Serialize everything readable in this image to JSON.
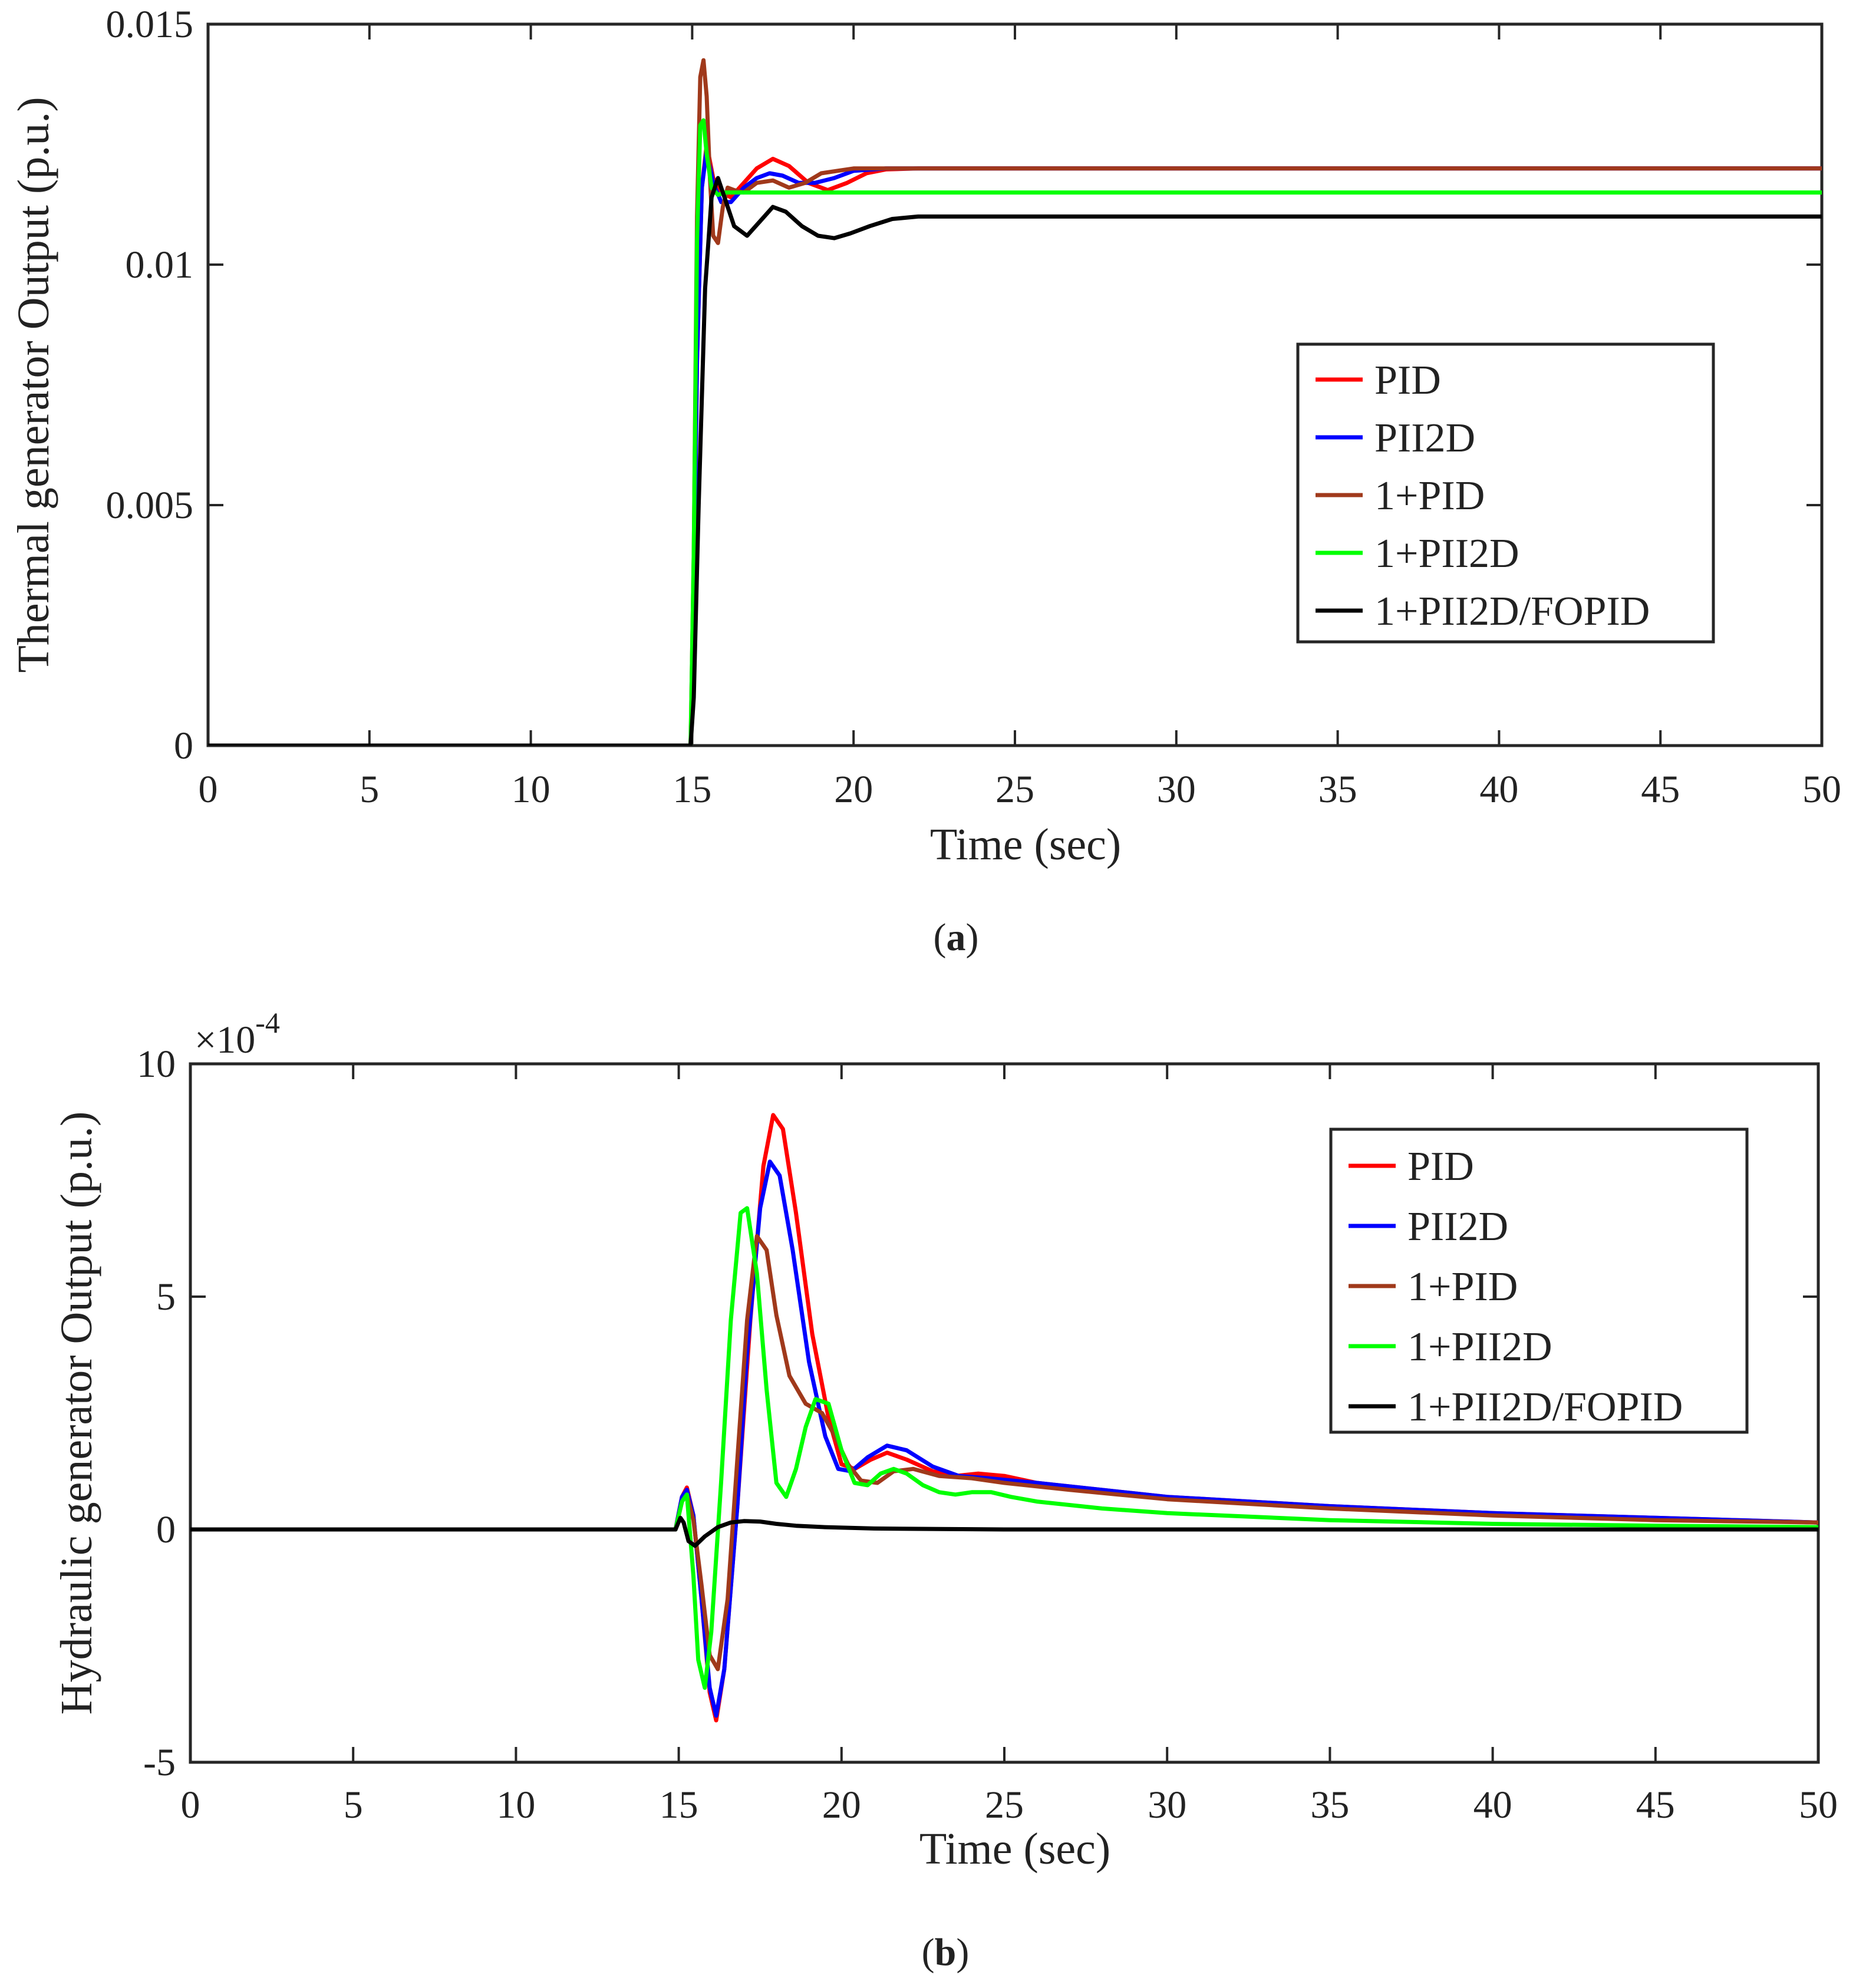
{
  "chart_data": [
    {
      "type": "line",
      "panel": "a",
      "caption": "(a)",
      "caption_letter": "a",
      "xlabel": "Time (sec)",
      "ylabel": "Thermal generator Output (p.u.)",
      "xlim": [
        0,
        50
      ],
      "ylim": [
        0,
        0.015
      ],
      "xticks": [
        0,
        5,
        10,
        15,
        20,
        25,
        30,
        35,
        40,
        45,
        50
      ],
      "xtick_labels": [
        "0",
        "5",
        "10",
        "15",
        "20",
        "25",
        "30",
        "35",
        "40",
        "45",
        "50"
      ],
      "yticks": [
        0,
        0.005,
        0.01,
        0.015
      ],
      "ytick_labels": [
        "0",
        "0.005",
        "0.01",
        "0.015"
      ],
      "exponent_label": "",
      "legend_position": "right",
      "series": [
        {
          "name": "PID",
          "color": "#ff0000",
          "x": [
            0,
            14.95,
            15.05,
            15.15,
            15.3,
            15.45,
            15.65,
            15.9,
            16.2,
            16.6,
            17.0,
            17.5,
            18.0,
            18.6,
            19.2,
            19.8,
            20.4,
            21.0,
            22.0,
            25.0,
            50.0
          ],
          "y": [
            0,
            0,
            0.003,
            0.008,
            0.0116,
            0.0125,
            0.0118,
            0.0115,
            0.0114,
            0.0117,
            0.012,
            0.0122,
            0.01205,
            0.0117,
            0.01155,
            0.0117,
            0.0119,
            0.01198,
            0.012,
            0.012,
            0.012
          ]
        },
        {
          "name": "PII2D",
          "color": "#0000ff",
          "x": [
            0,
            14.95,
            15.05,
            15.15,
            15.3,
            15.45,
            15.65,
            15.9,
            16.2,
            16.6,
            17.0,
            17.4,
            17.8,
            18.3,
            18.8,
            19.4,
            20.0,
            21.0,
            25.0,
            50.0
          ],
          "y": [
            0,
            0,
            0.003,
            0.008,
            0.0116,
            0.0124,
            0.0117,
            0.0113,
            0.0113,
            0.0116,
            0.0118,
            0.0119,
            0.01185,
            0.0117,
            0.0117,
            0.0118,
            0.01195,
            0.012,
            0.012,
            0.012
          ]
        },
        {
          "name": "1+PID",
          "color": "#a0391b",
          "x": [
            0,
            14.95,
            15.05,
            15.15,
            15.25,
            15.35,
            15.45,
            15.55,
            15.65,
            15.8,
            15.95,
            16.1,
            16.3,
            16.6,
            17.0,
            17.5,
            18.0,
            18.5,
            19.0,
            20.0,
            21.0,
            25.0,
            50.0
          ],
          "y": [
            0,
            0,
            0.004,
            0.011,
            0.0139,
            0.01425,
            0.0135,
            0.0118,
            0.0106,
            0.01045,
            0.0112,
            0.0116,
            0.01155,
            0.0115,
            0.0117,
            0.01175,
            0.0116,
            0.0117,
            0.0119,
            0.012,
            0.012,
            0.012,
            0.012
          ]
        },
        {
          "name": "1+PII2D",
          "color": "#00ff00",
          "x": [
            0,
            14.95,
            15.05,
            15.15,
            15.25,
            15.35,
            15.45,
            15.6,
            15.8,
            16.0,
            16.3,
            50.0
          ],
          "y": [
            0,
            0,
            0.004,
            0.0105,
            0.0129,
            0.013,
            0.0123,
            0.0116,
            0.01145,
            0.0115,
            0.0115,
            0.0115
          ]
        },
        {
          "name": "1+PII2D/FOPID",
          "color": "#000000",
          "x": [
            0,
            14.95,
            15.05,
            15.2,
            15.4,
            15.6,
            15.8,
            16.0,
            16.3,
            16.7,
            17.1,
            17.5,
            17.9,
            18.4,
            18.9,
            19.4,
            19.9,
            20.5,
            21.2,
            22.0,
            25.0,
            50.0
          ],
          "y": [
            0,
            0,
            0.001,
            0.005,
            0.0095,
            0.0114,
            0.0118,
            0.0114,
            0.0108,
            0.0106,
            0.0109,
            0.0112,
            0.0111,
            0.0108,
            0.0106,
            0.01055,
            0.01065,
            0.0108,
            0.01095,
            0.011,
            0.011,
            0.011
          ]
        }
      ]
    },
    {
      "type": "line",
      "panel": "b",
      "caption": "(b)",
      "caption_letter": "b",
      "xlabel": "Time (sec)",
      "ylabel": "Hydraulic generator Output (p.u.)",
      "xlim": [
        0,
        50
      ],
      "ylim": [
        -5,
        10
      ],
      "xticks": [
        0,
        5,
        10,
        15,
        20,
        25,
        30,
        35,
        40,
        45,
        50
      ],
      "xtick_labels": [
        "0",
        "5",
        "10",
        "15",
        "20",
        "25",
        "30",
        "35",
        "40",
        "45",
        "50"
      ],
      "yticks": [
        -5,
        0,
        5,
        10
      ],
      "ytick_labels": [
        "-5",
        "0",
        "5",
        "10"
      ],
      "exponent_label": "×10",
      "exponent_power": "-4",
      "legend_position": "right",
      "series": [
        {
          "name": "PID",
          "color": "#ff0000",
          "x": [
            0,
            14.9,
            15.1,
            15.25,
            15.45,
            15.7,
            15.95,
            16.15,
            16.4,
            16.8,
            17.2,
            17.6,
            17.9,
            18.2,
            18.6,
            19.1,
            19.6,
            20.0,
            20.4,
            20.9,
            21.4,
            22.0,
            22.8,
            23.5,
            24.2,
            25.0,
            26.0,
            28.0,
            30.0,
            35.0,
            40.0,
            45.0,
            50.0
          ],
          "y": [
            0,
            0,
            0.7,
            0.9,
            0.3,
            -1.5,
            -3.5,
            -4.1,
            -3.0,
            0.5,
            4.5,
            7.8,
            8.9,
            8.6,
            6.8,
            4.2,
            2.4,
            1.4,
            1.3,
            1.5,
            1.65,
            1.5,
            1.25,
            1.15,
            1.2,
            1.15,
            1.0,
            0.85,
            0.7,
            0.5,
            0.35,
            0.25,
            0.15
          ]
        },
        {
          "name": "PII2D",
          "color": "#0000ff",
          "x": [
            0,
            14.9,
            15.1,
            15.25,
            15.45,
            15.7,
            15.95,
            16.15,
            16.4,
            16.8,
            17.1,
            17.5,
            17.8,
            18.1,
            18.5,
            19.0,
            19.5,
            19.9,
            20.3,
            20.8,
            21.4,
            22.0,
            22.8,
            23.6,
            24.5,
            26.0,
            28.0,
            30.0,
            35.0,
            40.0,
            45.0,
            50.0
          ],
          "y": [
            0,
            0,
            0.7,
            0.85,
            0.3,
            -1.5,
            -3.4,
            -4.0,
            -3.0,
            0.5,
            3.8,
            6.9,
            7.9,
            7.6,
            6.0,
            3.6,
            2.0,
            1.3,
            1.25,
            1.55,
            1.8,
            1.7,
            1.35,
            1.15,
            1.1,
            1.0,
            0.85,
            0.7,
            0.5,
            0.35,
            0.25,
            0.15
          ]
        },
        {
          "name": "1+PID",
          "color": "#a0391b",
          "x": [
            0,
            14.9,
            15.1,
            15.25,
            15.45,
            15.7,
            15.95,
            16.2,
            16.5,
            16.8,
            17.1,
            17.4,
            17.7,
            18.0,
            18.4,
            18.9,
            19.4,
            19.8,
            20.2,
            20.6,
            21.1,
            21.6,
            22.2,
            23.0,
            24.0,
            25.0,
            27.0,
            30.0,
            35.0,
            40.0,
            45.0,
            50.0
          ],
          "y": [
            0,
            0,
            0.6,
            0.75,
            0.2,
            -1.2,
            -2.7,
            -3.0,
            -1.5,
            1.5,
            4.5,
            6.3,
            6.0,
            4.6,
            3.3,
            2.7,
            2.5,
            2.0,
            1.4,
            1.05,
            1.0,
            1.25,
            1.3,
            1.15,
            1.1,
            1.0,
            0.85,
            0.65,
            0.45,
            0.3,
            0.2,
            0.15
          ]
        },
        {
          "name": "1+PII2D",
          "color": "#00ff00",
          "x": [
            0,
            14.9,
            15.1,
            15.25,
            15.45,
            15.6,
            15.8,
            16.0,
            16.3,
            16.6,
            16.9,
            17.1,
            17.4,
            17.7,
            18.0,
            18.3,
            18.6,
            18.9,
            19.2,
            19.6,
            20.0,
            20.4,
            20.8,
            21.2,
            21.6,
            22.0,
            22.5,
            23.0,
            23.5,
            24.0,
            24.6,
            25.2,
            26.0,
            28.0,
            30.0,
            35.0,
            40.0,
            45.0,
            50.0
          ],
          "y": [
            0,
            0,
            0.6,
            0.75,
            -1.0,
            -2.8,
            -3.4,
            -2.2,
            1.0,
            4.5,
            6.8,
            6.9,
            5.5,
            3.0,
            1.0,
            0.7,
            1.3,
            2.2,
            2.8,
            2.7,
            1.7,
            1.0,
            0.95,
            1.2,
            1.3,
            1.2,
            0.95,
            0.8,
            0.75,
            0.8,
            0.8,
            0.7,
            0.6,
            0.45,
            0.35,
            0.2,
            0.12,
            0.08,
            0.05
          ]
        },
        {
          "name": "1+PII2D/FOPID",
          "color": "#000000",
          "x": [
            0,
            14.9,
            15.05,
            15.15,
            15.3,
            15.5,
            15.8,
            16.2,
            16.6,
            17.0,
            17.5,
            18.0,
            18.6,
            19.5,
            21.0,
            23.0,
            25.0,
            30.0,
            50.0
          ],
          "y": [
            0,
            0,
            0.25,
            0.15,
            -0.25,
            -0.35,
            -0.15,
            0.05,
            0.15,
            0.18,
            0.17,
            0.12,
            0.08,
            0.05,
            0.02,
            0.01,
            0.0,
            0.0,
            0.0
          ]
        }
      ]
    }
  ]
}
